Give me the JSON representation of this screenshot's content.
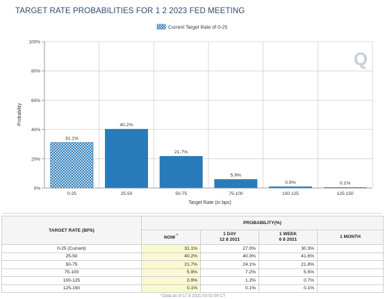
{
  "title": "TARGET RATE PROBABILITIES FOR 1 2 2023 FED MEETING",
  "chart_data": {
    "type": "bar",
    "categories": [
      "0-25",
      "25-50",
      "50-75",
      "75-100",
      "100-125",
      "125-150"
    ],
    "series": [
      {
        "name": "Current Target Rate of 0-25",
        "values": [
          31.1,
          40.2,
          21.7,
          5.9,
          0.9,
          0.1
        ]
      }
    ],
    "value_labels": [
      "31.1%",
      "40.2%",
      "21.7%",
      "5.9%",
      "0.9%",
      "0.1%"
    ],
    "current_index": 0,
    "xlabel": "Target Rate (in bps)",
    "ylabel": "Probability",
    "ylim": [
      0,
      100
    ],
    "yticks": [
      0,
      20,
      40,
      60,
      80,
      100
    ],
    "ytick_labels": [
      "0%",
      "20%",
      "40%",
      "60%",
      "80%",
      "100%"
    ],
    "legend": "Current Target Rate of 0-25",
    "legend_position": "top-center",
    "grid": true,
    "colors": {
      "bar": "#2a7bb9",
      "hatch": "#2a7bb9",
      "grid": "#d0d0d0"
    },
    "watermark": "Q"
  },
  "table": {
    "col_target": "TARGET RATE (BPS)",
    "col_prob": "PROBABILITY(%)",
    "sub_headers": [
      {
        "line1": "NOW",
        "line2": "*"
      },
      {
        "line1": "1 DAY",
        "line2": "12 8 2021"
      },
      {
        "line1": "1 WEEK",
        "line2": "6 8 2021"
      },
      {
        "line1": "1 MONTH",
        "line2": ""
      }
    ],
    "rows": [
      {
        "label": "0-25 (Current)",
        "now": "31.1%",
        "day": "27.0%",
        "week": "30.3%",
        "month": ""
      },
      {
        "label": "25-50",
        "now": "40.2%",
        "day": "40.3%",
        "week": "41.6%",
        "month": ""
      },
      {
        "label": "50-75",
        "now": "21.7%",
        "day": "24.1%",
        "week": "21.8%",
        "month": ""
      },
      {
        "label": "75-100",
        "now": "5.9%",
        "day": "7.2%",
        "week": "5.5%",
        "month": ""
      },
      {
        "label": "100-125",
        "now": "0.9%",
        "day": "1.2%",
        "week": "0.7%",
        "month": ""
      },
      {
        "label": "125-150",
        "now": "0.1%",
        "day": "0.1%",
        "week": "0.1%",
        "month": ""
      }
    ],
    "footnote": "* Data as of 17 8 2021 03:02:09 CT"
  }
}
